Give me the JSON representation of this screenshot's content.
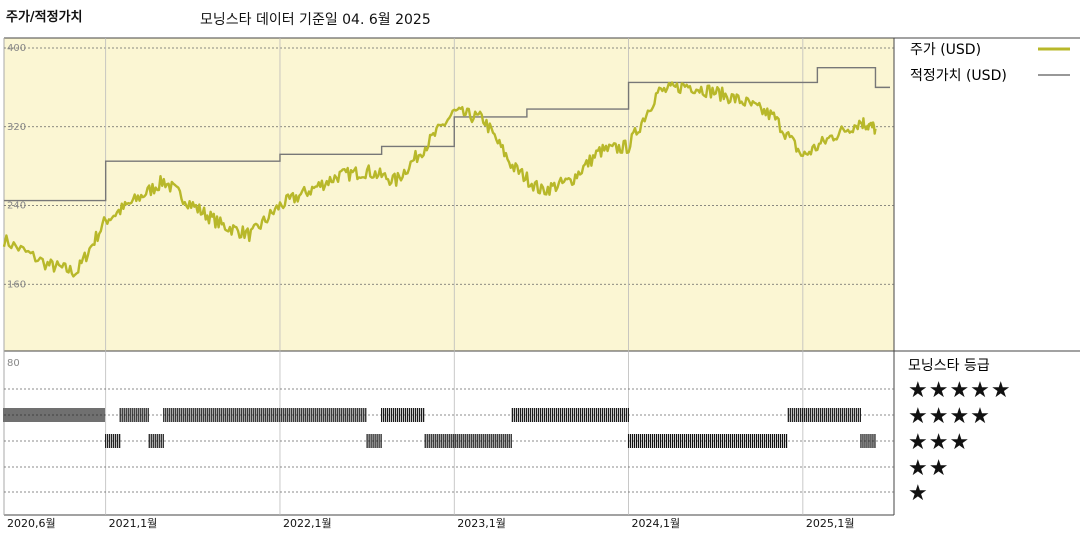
{
  "header": {
    "title": "주가/적정가치",
    "date_line": "모닝스타 데이터 기준일 04. 6월 2025"
  },
  "legend": {
    "price_label": "주가 (USD)",
    "fair_label": "적정가치 (USD)",
    "rating_title": "모닝스타 등급"
  },
  "colors": {
    "price": "#b8b82a",
    "fair": "#777777",
    "panel_bg": "#fbf6d3",
    "bars": "#111111"
  },
  "chart_data": {
    "type": "line",
    "yticks": [
      "400",
      "320",
      "240",
      "160",
      "80"
    ],
    "ylim": [
      80,
      400
    ],
    "xticks": [
      "2020,6월",
      "2021,1월",
      "2022,1월",
      "2023,1월",
      "2024,1월",
      "2025,1월"
    ],
    "xlim": [
      "2020-06",
      "2025-07"
    ],
    "series": [
      {
        "name": "주가 (USD)",
        "x": [
          "2020-06",
          "2020-09",
          "2020-11",
          "2021-01",
          "2021-03",
          "2021-05",
          "2021-07",
          "2021-09",
          "2021-11",
          "2022-01",
          "2022-03",
          "2022-05",
          "2022-07",
          "2022-09",
          "2022-11",
          "2023-01",
          "2023-03",
          "2023-05",
          "2023-07",
          "2023-09",
          "2023-11",
          "2024-01",
          "2024-03",
          "2024-05",
          "2024-07",
          "2024-09",
          "2024-11",
          "2025-01",
          "2025-03",
          "2025-05",
          "2025-06"
        ],
        "values": [
          205,
          180,
          172,
          225,
          245,
          265,
          240,
          220,
          210,
          240,
          255,
          270,
          275,
          265,
          300,
          335,
          328,
          280,
          255,
          265,
          295,
          300,
          355,
          362,
          355,
          345,
          330,
          290,
          310,
          325,
          318
        ]
      },
      {
        "name": "적정가치 (USD)",
        "x": [
          "2020-06",
          "2021-01",
          "2022-01",
          "2022-08",
          "2023-01",
          "2023-06",
          "2024-01",
          "2024-12",
          "2025-02",
          "2025-06"
        ],
        "values": [
          245,
          285,
          292,
          300,
          330,
          338,
          365,
          365,
          380,
          360
        ]
      }
    ],
    "ratings": {
      "levels": [
        "★★★★★",
        "★★★★",
        "★★★",
        "★★",
        "★"
      ],
      "segments": [
        {
          "level": 2,
          "start": "2020-06",
          "end": "2021-01"
        },
        {
          "level": 3,
          "start": "2021-01",
          "end": "2021-02"
        },
        {
          "level": 2,
          "start": "2021-02",
          "end": "2021-04"
        },
        {
          "level": 3,
          "start": "2021-04",
          "end": "2021-05"
        },
        {
          "level": 2,
          "start": "2021-05",
          "end": "2022-07"
        },
        {
          "level": 3,
          "start": "2022-07",
          "end": "2022-08"
        },
        {
          "level": 2,
          "start": "2022-08",
          "end": "2022-11"
        },
        {
          "level": 3,
          "start": "2022-11",
          "end": "2023-05"
        },
        {
          "level": 2,
          "start": "2023-05",
          "end": "2024-01"
        },
        {
          "level": 3,
          "start": "2024-01",
          "end": "2024-12"
        },
        {
          "level": 2,
          "start": "2024-12",
          "end": "2025-05"
        },
        {
          "level": 3,
          "start": "2025-05",
          "end": "2025-06"
        }
      ]
    }
  }
}
